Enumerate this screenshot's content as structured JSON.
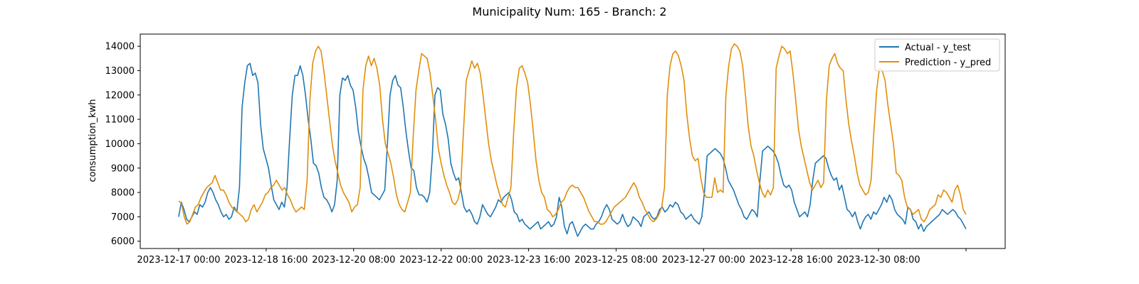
{
  "chart_data": {
    "type": "line",
    "title": "Municipality Num: 165 - Branch: 2",
    "xlabel": "",
    "ylabel": "consumption_kwh",
    "x_range": [
      "2023-12-17 00:00",
      "2023-12-31 23:00"
    ],
    "sampling": "hourly",
    "xticks": [
      "2023-12-17 00:00",
      "2023-12-18 16:00",
      "2023-12-20 08:00",
      "2023-12-22 00:00",
      "2023-12-23 16:00",
      "2023-12-25 08:00",
      "2023-12-27 00:00",
      "2023-12-28 16:00",
      "2023-12-30 08:00",
      ""
    ],
    "yticks": [
      6000,
      7000,
      8000,
      9000,
      10000,
      11000,
      12000,
      13000,
      14000
    ],
    "ylim": [
      5700,
      14500
    ],
    "grid": false,
    "legend": "top-right",
    "series": [
      {
        "name": "Actual - y_test",
        "color": "#1f77b4",
        "values": [
          7000,
          7600,
          7300,
          6900,
          6800,
          7000,
          7200,
          7100,
          7500,
          7400,
          7600,
          8000,
          8200,
          8000,
          7700,
          7500,
          7200,
          7000,
          7100,
          6900,
          7000,
          7400,
          7200,
          8200,
          11500,
          12500,
          13200,
          13300,
          12800,
          12900,
          12500,
          10800,
          9800,
          9400,
          9000,
          8300,
          7700,
          7500,
          7300,
          7600,
          7400,
          8200,
          10200,
          12000,
          12800,
          12800,
          13200,
          12800,
          12000,
          11000,
          10200,
          9200,
          9100,
          8800,
          8200,
          7800,
          7700,
          7500,
          7200,
          7500,
          8500,
          12000,
          12700,
          12600,
          12800,
          12400,
          12200,
          11500,
          10500,
          9900,
          9400,
          9100,
          8600,
          8000,
          7900,
          7800,
          7700,
          7900,
          8100,
          10000,
          12000,
          12600,
          12800,
          12400,
          12300,
          11500,
          10500,
          9700,
          9000,
          8900,
          8200,
          7900,
          7900,
          7800,
          7600,
          8000,
          9500,
          12000,
          12300,
          12200,
          11200,
          10800,
          10200,
          9200,
          8800,
          8500,
          8600,
          8000,
          7400,
          7200,
          7300,
          7100,
          6800,
          6700,
          7000,
          7500,
          7300,
          7100,
          7000,
          7200,
          7400,
          7700,
          7600,
          7800,
          7900,
          8000,
          7700,
          7200,
          7100,
          6800,
          6900,
          6700,
          6600,
          6500,
          6600,
          6700,
          6800,
          6500,
          6600,
          6700,
          6800,
          6600,
          6700,
          7000,
          7800,
          7400,
          6600,
          6300,
          6700,
          6800,
          6500,
          6200,
          6400,
          6600,
          6700,
          6600,
          6500,
          6500,
          6700,
          6800,
          7000,
          7300,
          7500,
          7300,
          6900,
          6800,
          6700,
          6800,
          7100,
          6800,
          6600,
          6700,
          7000,
          6900,
          6800,
          6600,
          7000,
          7100,
          7200,
          7000,
          6900,
          7000,
          7300,
          7400,
          7200,
          7300,
          7500,
          7400,
          7600,
          7500,
          7200,
          7100,
          6900,
          7000,
          7100,
          6900,
          6800,
          6700,
          7000,
          8000,
          9500,
          9600,
          9700,
          9800,
          9700,
          9600,
          9400,
          9000,
          8500,
          8300,
          8100,
          7800,
          7500,
          7300,
          7000,
          6900,
          7100,
          7300,
          7200,
          7000,
          8500,
          9700,
          9800,
          9900,
          9800,
          9700,
          9500,
          9200,
          8700,
          8300,
          8200,
          8300,
          8100,
          7600,
          7300,
          7000,
          7100,
          7200,
          7000,
          7500,
          8500,
          9200,
          9300,
          9400,
          9500,
          9400,
          9000,
          8700,
          8500,
          8600,
          8100,
          8300,
          7800,
          7300,
          7200,
          7000,
          7200,
          6800,
          6500,
          6800,
          7000,
          7100,
          6900,
          7200,
          7100,
          7300,
          7500,
          7800,
          7600,
          7900,
          7700,
          7300,
          7100,
          7000,
          6900,
          6700,
          7400,
          7300,
          6900,
          6800,
          6500,
          6700,
          6400,
          6600,
          6700,
          6800,
          6900,
          7000,
          7100,
          7300,
          7200,
          7100,
          7200,
          7300,
          7200,
          7000,
          6900,
          6700,
          6500
        ]
      },
      {
        "name": "Prediction - y_pred",
        "color": "#e08e0b",
        "values": [
          7650,
          7550,
          7000,
          6700,
          6800,
          7100,
          7400,
          7500,
          7800,
          8000,
          8200,
          8300,
          8400,
          8700,
          8400,
          8100,
          8100,
          7900,
          7600,
          7400,
          7300,
          7200,
          7100,
          7000,
          6800,
          6900,
          7300,
          7500,
          7200,
          7400,
          7600,
          7900,
          8000,
          8200,
          8300,
          8500,
          8300,
          8100,
          8200,
          7900,
          7700,
          7400,
          7200,
          7300,
          7400,
          7300,
          8500,
          11800,
          13300,
          13800,
          14000,
          13800,
          13000,
          12000,
          11000,
          10000,
          9300,
          8800,
          8300,
          8000,
          7800,
          7600,
          7200,
          7400,
          7500,
          8200,
          12200,
          13200,
          13600,
          13200,
          13500,
          13100,
          12400,
          11000,
          10000,
          9600,
          9200,
          8600,
          7900,
          7500,
          7300,
          7200,
          7600,
          8000,
          10300,
          12200,
          13000,
          13700,
          13600,
          13500,
          12900,
          12000,
          11000,
          9800,
          9200,
          8700,
          8300,
          8000,
          7600,
          7500,
          7700,
          8200,
          10500,
          12600,
          13000,
          13400,
          13100,
          13300,
          12900,
          12000,
          11000,
          10000,
          9300,
          8800,
          8300,
          7900,
          7500,
          7400,
          7800,
          8200,
          10500,
          12300,
          13100,
          13200,
          12900,
          12500,
          11600,
          10500,
          9300,
          8500,
          8000,
          7800,
          7300,
          7200,
          7000,
          7100,
          7300,
          7600,
          7700,
          8000,
          8200,
          8300,
          8200,
          8200,
          8000,
          7800,
          7500,
          7200,
          7000,
          6800,
          6800,
          6700,
          6700,
          6800,
          7000,
          7200,
          7400,
          7500,
          7600,
          7700,
          7800,
          8000,
          8200,
          8400,
          8200,
          7800,
          7600,
          7300,
          7100,
          6900,
          6800,
          6900,
          7100,
          7400,
          8200,
          12000,
          13200,
          13700,
          13800,
          13600,
          13200,
          12600,
          11200,
          10200,
          9500,
          9300,
          9400,
          8600,
          8000,
          7800,
          7800,
          7800,
          8600,
          8000,
          8100,
          8000,
          12000,
          13200,
          13900,
          14100,
          14000,
          13800,
          13200,
          12000,
          10700,
          9900,
          9500,
          8900,
          8400,
          8000,
          7800,
          8100,
          7900,
          8200,
          13100,
          13600,
          14000,
          13900,
          13700,
          13800,
          12900,
          11800,
          10600,
          9900,
          9400,
          8900,
          8400,
          8100,
          8300,
          8500,
          8200,
          8400,
          11800,
          13200,
          13500,
          13700,
          13300,
          13100,
          13000,
          11800,
          10800,
          10100,
          9500,
          8800,
          8300,
          8100,
          7900,
          8000,
          8500,
          10500,
          12200,
          13100,
          13000,
          12600,
          11600,
          10800,
          10000,
          8800,
          8700,
          8500,
          7800,
          7400,
          7300,
          7100,
          7200,
          7300,
          6900,
          6800,
          7000,
          7300,
          7400,
          7500,
          7900,
          7800,
          8100,
          8000,
          7800,
          7600,
          8100,
          8300,
          7900,
          7300,
          7100
        ]
      }
    ]
  }
}
